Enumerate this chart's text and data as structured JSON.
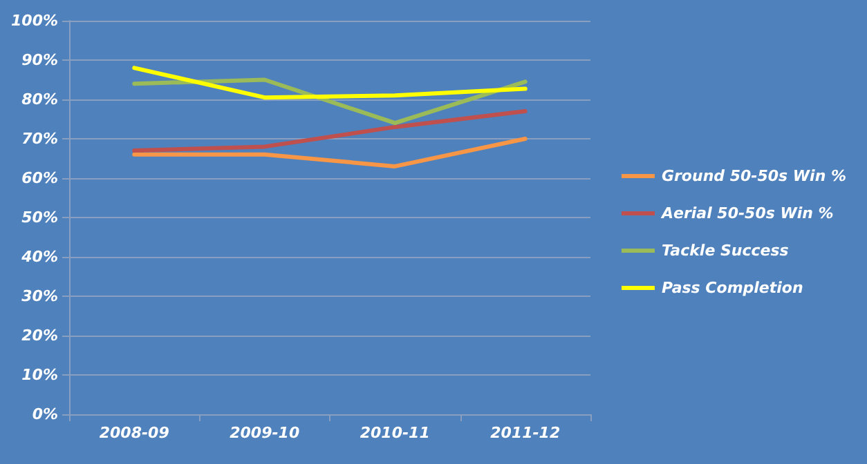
{
  "chart_data": {
    "type": "line",
    "categories": [
      "2008-09",
      "2009-10",
      "2010-11",
      "2011-12"
    ],
    "series": [
      {
        "name": "Ground 50-50s Win %",
        "color": "#f79646",
        "values": [
          66,
          66,
          63,
          70
        ]
      },
      {
        "name": "Aerial 50-50s Win %",
        "color": "#c0504d",
        "values": [
          67,
          68,
          73,
          77
        ]
      },
      {
        "name": "Tackle Success",
        "color": "#9bbb59",
        "values": [
          84,
          85,
          74,
          84.5
        ]
      },
      {
        "name": "Pass Completion",
        "color": "#ffff00",
        "values": [
          88,
          80.5,
          81,
          82.7
        ]
      }
    ],
    "ylim": [
      0,
      100
    ],
    "yticks": [
      {
        "value": 0,
        "label": "0%"
      },
      {
        "value": 10,
        "label": "10%"
      },
      {
        "value": 20,
        "label": "20%"
      },
      {
        "value": 30,
        "label": "30%"
      },
      {
        "value": 40,
        "label": "40%"
      },
      {
        "value": 50,
        "label": "50%"
      },
      {
        "value": 60,
        "label": "60%"
      },
      {
        "value": 70,
        "label": "70%"
      },
      {
        "value": 80,
        "label": "80%"
      },
      {
        "value": 90,
        "label": "90%"
      },
      {
        "value": 100,
        "label": "100%"
      }
    ],
    "grid": "y",
    "legend": "right",
    "marker": "none",
    "line_style": "solid"
  }
}
